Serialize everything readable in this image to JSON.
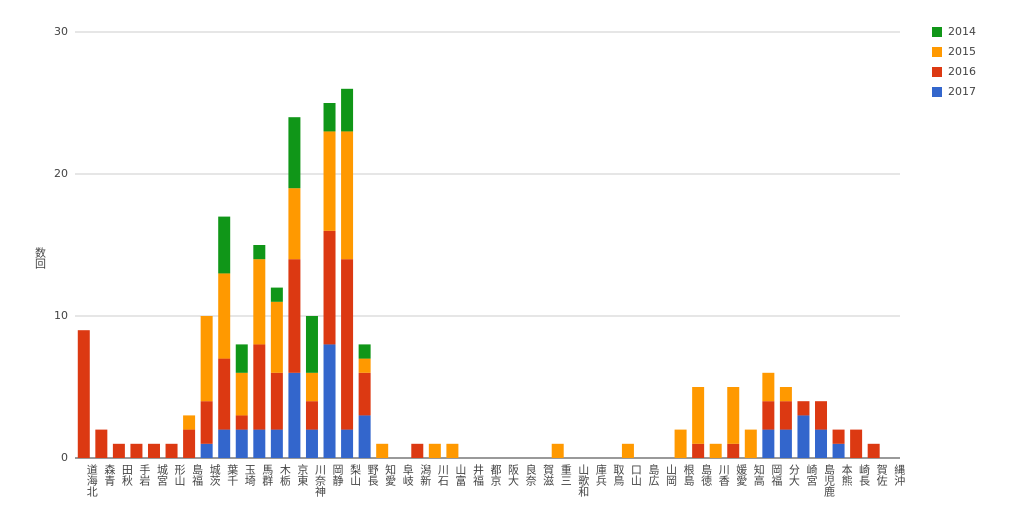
{
  "chart_data": {
    "type": "stacked_bar",
    "y_label": "数回",
    "categories": [
      "道海北",
      "森青",
      "田秋",
      "手岩",
      "城宮",
      "形山",
      "島福",
      "城茨",
      "葉千",
      "玉埼",
      "馬群",
      "木栃",
      "京東",
      "川奈神",
      "岡静",
      "梨山",
      "野長",
      "知愛",
      "阜岐",
      "潟新",
      "川石",
      "山富",
      "井福",
      "都京",
      "阪大",
      "良奈",
      "賀滋",
      "重三",
      "山歌和",
      "庫兵",
      "取鳥",
      "口山",
      "島広",
      "山岡",
      "根島",
      "島徳",
      "川香",
      "媛愛",
      "知高",
      "岡福",
      "分大",
      "崎宮",
      "島児鹿",
      "本熊",
      "崎長",
      "賀佐",
      "縄沖"
    ],
    "series": [
      {
        "name": "2014",
        "color": "#109618",
        "values": [
          0,
          0,
          0,
          0,
          0,
          0,
          0,
          0,
          4,
          2,
          1,
          1,
          5,
          4,
          2,
          3,
          1,
          0,
          0,
          0,
          0,
          0,
          0,
          0,
          0,
          0,
          0,
          0,
          0,
          0,
          0,
          0,
          0,
          0,
          0,
          0,
          0,
          0,
          0,
          0,
          0,
          0,
          0,
          0,
          0,
          0,
          0
        ]
      },
      {
        "name": "2015",
        "color": "#ff9900",
        "values": [
          0,
          0,
          0,
          0,
          0,
          0,
          1,
          6,
          6,
          3,
          6,
          5,
          5,
          2,
          7,
          9,
          1,
          1,
          0,
          0,
          1,
          1,
          0,
          0,
          0,
          0,
          0,
          1,
          0,
          0,
          0,
          1,
          0,
          0,
          2,
          4,
          1,
          4,
          2,
          2,
          1,
          0,
          0,
          0,
          0,
          0,
          0
        ]
      },
      {
        "name": "2016",
        "color": "#dc3912",
        "values": [
          9,
          2,
          1,
          1,
          1,
          1,
          2,
          3,
          5,
          1,
          6,
          4,
          8,
          2,
          8,
          12,
          3,
          0,
          0,
          1,
          0,
          0,
          0,
          0,
          0,
          0,
          0,
          0,
          0,
          0,
          0,
          0,
          0,
          0,
          0,
          1,
          0,
          1,
          0,
          2,
          2,
          1,
          2,
          1,
          2,
          1,
          0
        ]
      },
      {
        "name": "2017",
        "color": "#3366cc",
        "values": [
          0,
          0,
          0,
          0,
          0,
          0,
          0,
          1,
          2,
          2,
          2,
          2,
          6,
          2,
          8,
          2,
          3,
          0,
          0,
          0,
          0,
          0,
          0,
          0,
          0,
          0,
          0,
          0,
          0,
          0,
          0,
          0,
          0,
          0,
          0,
          0,
          0,
          0,
          0,
          2,
          2,
          3,
          2,
          1,
          0,
          0,
          0
        ]
      }
    ],
    "ylim": [
      0,
      30
    ],
    "yticks": [
      0,
      10,
      20,
      30
    ],
    "grid": true
  }
}
